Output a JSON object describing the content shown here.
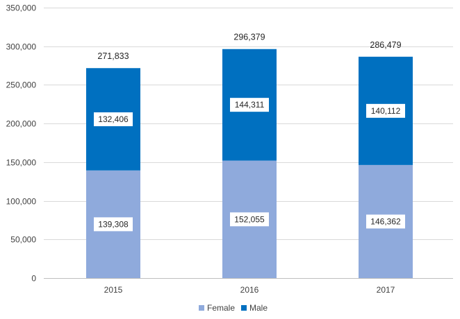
{
  "chart_data": {
    "type": "bar",
    "stacked": true,
    "categories": [
      "2015",
      "2016",
      "2017"
    ],
    "series": [
      {
        "name": "Female",
        "values": [
          139308,
          152055,
          146362
        ],
        "color": "#8faadc",
        "labels": [
          "139,308",
          "152,055",
          "146,362"
        ]
      },
      {
        "name": "Male",
        "values": [
          132406,
          144311,
          140112
        ],
        "color": "#0070c0",
        "labels": [
          "132,406",
          "144,311",
          "140,112"
        ]
      }
    ],
    "totals": [
      271833,
      296379,
      286479
    ],
    "total_labels": [
      "271,833",
      "296,379",
      "286,479"
    ],
    "yticks": [
      0,
      50000,
      100000,
      150000,
      200000,
      250000,
      300000,
      350000
    ],
    "ytick_labels": [
      "0",
      "50,000",
      "100,000",
      "150,000",
      "200,000",
      "250,000",
      "300,000",
      "350,000"
    ],
    "ylim": [
      0,
      350000
    ],
    "grid": true,
    "legend_position": "bottom",
    "title": "",
    "xlabel": "",
    "ylabel": ""
  }
}
